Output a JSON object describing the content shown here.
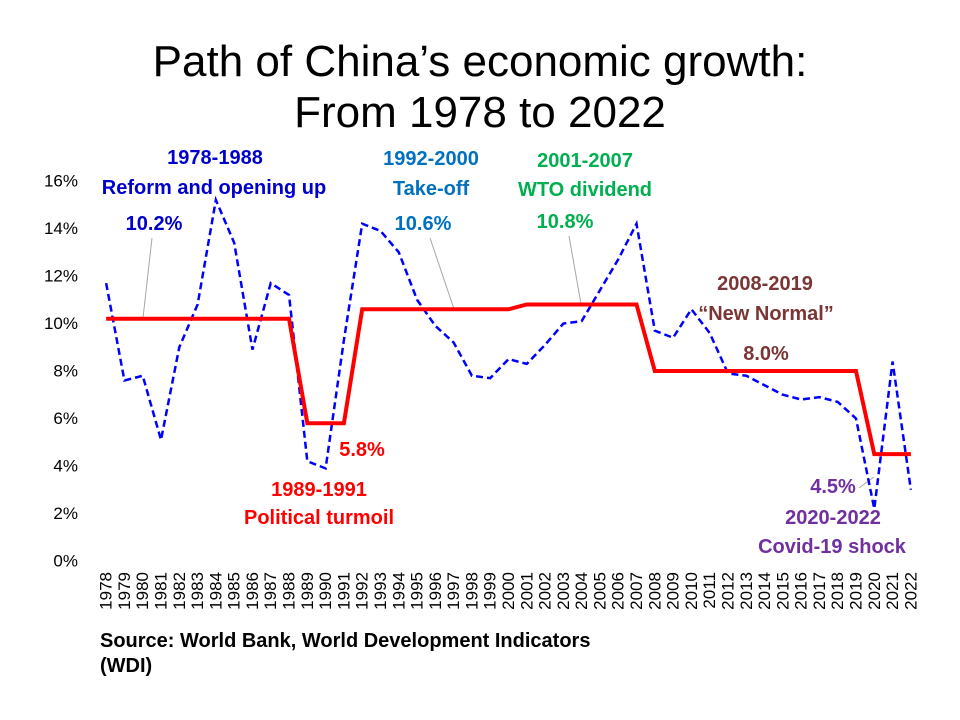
{
  "chart_data": {
    "type": "line",
    "title": [
      "Path of China’s economic growth:",
      "From 1978 to 2022"
    ],
    "xlabel": "",
    "ylabel": "",
    "categories": [
      "1978",
      "1979",
      "1980",
      "1981",
      "1982",
      "1983",
      "1984",
      "1985",
      "1986",
      "1987",
      "1988",
      "1989",
      "1990",
      "1991",
      "1992",
      "1993",
      "1994",
      "1995",
      "1996",
      "1997",
      "1998",
      "1999",
      "2000",
      "2001",
      "2002",
      "2003",
      "2004",
      "2005",
      "2006",
      "2007",
      "2008",
      "2009",
      "2010",
      "2011",
      "2012",
      "2013",
      "2014",
      "2015",
      "2016",
      "2017",
      "2018",
      "2019",
      "2020",
      "2021",
      "2022"
    ],
    "ylim": [
      0,
      16
    ],
    "y_ticks": [
      {
        "value": 0,
        "label": "0%"
      },
      {
        "value": 2,
        "label": "2%"
      },
      {
        "value": 4,
        "label": "4%"
      },
      {
        "value": 6,
        "label": "6%"
      },
      {
        "value": 8,
        "label": "8%"
      },
      {
        "value": 10,
        "label": "10%"
      },
      {
        "value": 12,
        "label": "12%"
      },
      {
        "value": 14,
        "label": "14%"
      },
      {
        "value": 16,
        "label": "16%"
      }
    ],
    "grid": false,
    "legend": "none",
    "series": [
      {
        "values": [
          11.7,
          7.6,
          7.8,
          5.1,
          9.0,
          10.8,
          15.2,
          13.4,
          8.9,
          11.7,
          11.2,
          4.2,
          3.9,
          9.3,
          14.2,
          13.9,
          13.0,
          11.0,
          9.9,
          9.2,
          7.8,
          7.7,
          8.5,
          8.3,
          9.1,
          10.0,
          10.1,
          11.4,
          12.7,
          14.2,
          9.7,
          9.4,
          10.6,
          9.6,
          7.9,
          7.8,
          7.4,
          7.0,
          6.8,
          6.9,
          6.7,
          6.0,
          2.2,
          8.4,
          3.0
        ],
        "color": "#0000FF",
        "line_style": "dashed"
      },
      {
        "values": [
          10.2,
          10.2,
          10.2,
          10.2,
          10.2,
          10.2,
          10.2,
          10.2,
          10.2,
          10.2,
          10.2,
          5.8,
          5.8,
          5.8,
          10.6,
          10.6,
          10.6,
          10.6,
          10.6,
          10.6,
          10.6,
          10.6,
          10.6,
          10.8,
          10.8,
          10.8,
          10.8,
          10.8,
          10.8,
          10.8,
          8.0,
          8.0,
          8.0,
          8.0,
          8.0,
          8.0,
          8.0,
          8.0,
          8.0,
          8.0,
          8.0,
          8.0,
          4.5,
          4.5,
          4.5
        ],
        "color": "#FF0000",
        "line_style": "solid"
      }
    ],
    "annotations": [
      {
        "period": "1978-1988",
        "label": "Reform and opening up",
        "value_label": "10.2%",
        "color": "#0000CC"
      },
      {
        "period": "1989-1991",
        "label": "Political turmoil",
        "value_label": "5.8%",
        "color": "#FF0000"
      },
      {
        "period": "1992-2000",
        "label": "Take-off",
        "value_label": "10.6%",
        "color": "#0070C0"
      },
      {
        "period": "2001-2007",
        "label": "WTO dividend",
        "value_label": "10.8%",
        "color": "#00B050"
      },
      {
        "period": "2008-2019",
        "label": "“New Normal”",
        "value_label": "8.0%",
        "color": "#7B3535"
      },
      {
        "period": "2020-2022",
        "label": "Covid-19 shock",
        "value_label": "4.5%",
        "color": "#7030A0"
      }
    ]
  },
  "source": [
    "Source: World Bank, World Development Indicators",
    "(WDI)"
  ]
}
